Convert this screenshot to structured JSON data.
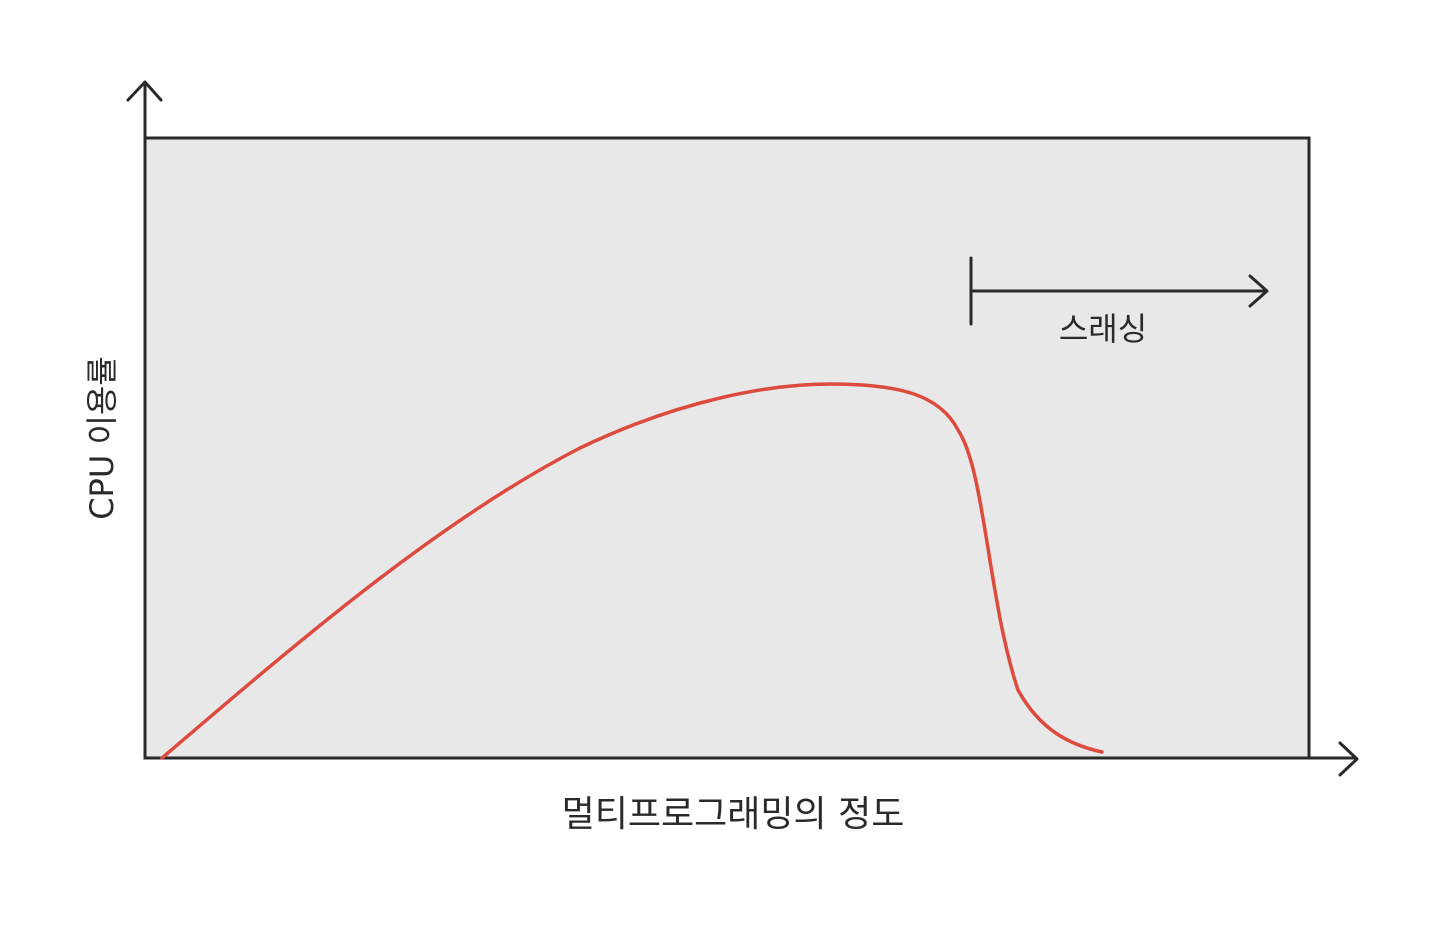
{
  "diagram": {
    "y_axis_label": "CPU 이용률",
    "x_axis_label": "멀티프로그래밍의 정도",
    "thrashing_label": "스래싱",
    "colors": {
      "plot_background": "#e8e8e8",
      "curve": "#dd4b3e",
      "ink": "#2a2a2a",
      "page": "#ffffff"
    }
  }
}
